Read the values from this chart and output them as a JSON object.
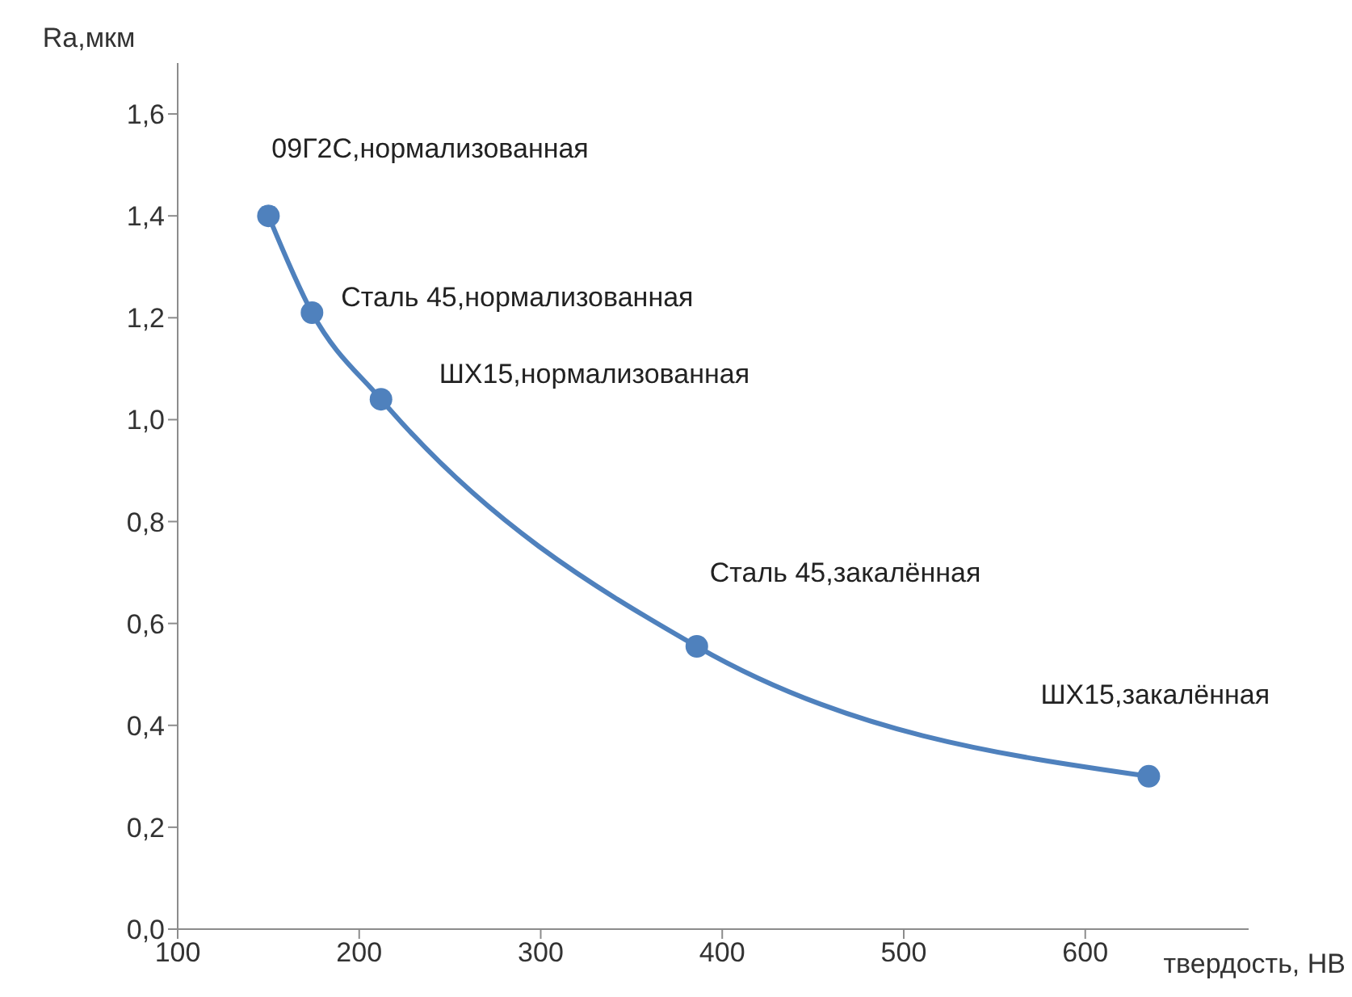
{
  "chart_data": {
    "type": "line",
    "xlabel": "твердость, HB",
    "ylabel": "Ra,мкм",
    "x": [
      150,
      174,
      212,
      386,
      635
    ],
    "series": [
      {
        "color": "#4f81bd",
        "values": [
          1.4,
          1.21,
          1.04,
          0.555,
          0.3
        ]
      }
    ],
    "xlim": [
      100,
      690
    ],
    "xticks": [
      100,
      200,
      300,
      400,
      500,
      600
    ],
    "ylim": [
      0,
      1.7
    ],
    "yticks": [
      {
        "value": 0,
        "label": "0,0"
      },
      {
        "value": 0.2,
        "label": "0,2"
      },
      {
        "value": 0.4,
        "label": "0,4"
      },
      {
        "value": 0.6,
        "label": "0,6"
      },
      {
        "value": 0.8,
        "label": "0,8"
      },
      {
        "value": 1.0,
        "label": "1,0"
      },
      {
        "value": 1.2,
        "label": "1,2"
      },
      {
        "value": 1.4,
        "label": "1,4"
      },
      {
        "value": 1.6,
        "label": "1,6"
      }
    ],
    "marker": "circle",
    "line_style": "solid",
    "grid": false,
    "legend": false,
    "annotations": [
      {
        "text": "09Г2С,нормализованная",
        "x": 150,
        "y": 1.4
      },
      {
        "text": "Сталь 45,нормализованная",
        "x": 174,
        "y": 1.21
      },
      {
        "text": "ШХ15,нормализованная",
        "x": 212,
        "y": 1.04
      },
      {
        "text": "Сталь 45,закалённая",
        "x": 386,
        "y": 0.555
      },
      {
        "text": "ШХ15,закалённая",
        "x": 635,
        "y": 0.3
      }
    ]
  }
}
